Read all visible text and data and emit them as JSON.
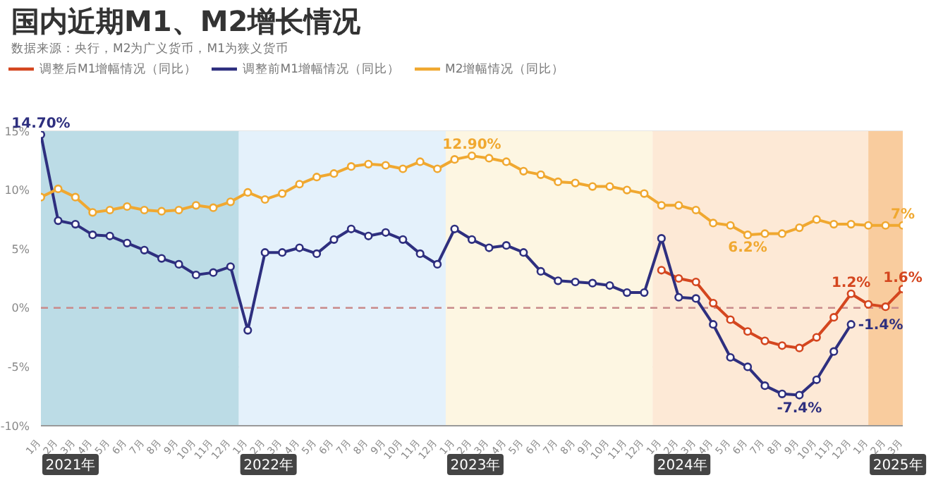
{
  "chart_data": {
    "type": "line",
    "title": "国内近期M1、M2增长情况",
    "subtitle": "数据来源：央行，M2为广义货币，M1为狭义货币",
    "x": [
      "2021-01",
      "2021-02",
      "2021-03",
      "2021-04",
      "2021-05",
      "2021-06",
      "2021-07",
      "2021-08",
      "2021-09",
      "2021-10",
      "2021-11",
      "2021-12",
      "2022-01",
      "2022-02",
      "2022-03",
      "2022-04",
      "2022-05",
      "2022-06",
      "2022-07",
      "2022-08",
      "2022-09",
      "2022-10",
      "2022-11",
      "2022-12",
      "2023-01",
      "2023-02",
      "2023-03",
      "2023-04",
      "2023-05",
      "2023-06",
      "2023-07",
      "2023-08",
      "2023-09",
      "2023-10",
      "2023-11",
      "2023-12",
      "2024-01",
      "2024-02",
      "2024-03",
      "2024-04",
      "2024-05",
      "2024-06",
      "2024-07",
      "2024-08",
      "2024-09",
      "2024-10",
      "2024-11",
      "2024-12",
      "2025-01",
      "2025-02",
      "2025-03"
    ],
    "series": [
      {
        "name": "调整后M1增幅情况（同比）",
        "color": "#d4461f",
        "values": [
          null,
          null,
          null,
          null,
          null,
          null,
          null,
          null,
          null,
          null,
          null,
          null,
          null,
          null,
          null,
          null,
          null,
          null,
          null,
          null,
          null,
          null,
          null,
          null,
          null,
          null,
          null,
          null,
          null,
          null,
          null,
          null,
          null,
          null,
          null,
          null,
          3.2,
          2.5,
          2.2,
          0.4,
          -1.0,
          -2.0,
          -2.8,
          -3.2,
          -3.4,
          -2.5,
          -0.8,
          1.2,
          0.3,
          0.1,
          1.6
        ]
      },
      {
        "name": "调整前M1增幅情况（同比）",
        "color": "#2e2f7f",
        "values": [
          14.7,
          7.4,
          7.1,
          6.2,
          6.1,
          5.5,
          4.9,
          4.2,
          3.7,
          2.8,
          3.0,
          3.5,
          -1.9,
          4.7,
          4.7,
          5.1,
          4.6,
          5.8,
          6.7,
          6.1,
          6.4,
          5.8,
          4.6,
          3.7,
          6.7,
          5.8,
          5.1,
          5.3,
          4.7,
          3.1,
          2.3,
          2.2,
          2.1,
          1.9,
          1.3,
          1.3,
          5.9,
          0.9,
          0.8,
          -1.4,
          -4.2,
          -5.0,
          -6.6,
          -7.3,
          -7.4,
          -6.1,
          -3.7,
          -1.4,
          null,
          null,
          null
        ]
      },
      {
        "name": "M2增幅情况（同比）",
        "color": "#f0a830",
        "values": [
          9.4,
          10.1,
          9.4,
          8.1,
          8.3,
          8.6,
          8.3,
          8.2,
          8.3,
          8.7,
          8.5,
          9.0,
          9.8,
          9.2,
          9.7,
          10.5,
          11.1,
          11.4,
          12.0,
          12.2,
          12.1,
          11.8,
          12.4,
          11.8,
          12.6,
          12.9,
          12.7,
          12.4,
          11.6,
          11.3,
          10.7,
          10.6,
          10.3,
          10.3,
          10.0,
          9.7,
          8.7,
          8.7,
          8.3,
          7.2,
          7.0,
          6.2,
          6.3,
          6.3,
          6.8,
          7.5,
          7.1,
          7.1,
          7.0,
          7.0,
          7.0
        ]
      }
    ],
    "xlim": [
      "2021-01",
      "2025-03"
    ],
    "xticks": [
      {
        "value": "2021-01",
        "label": "1月"
      },
      {
        "value": "2021-02",
        "label": "2月"
      },
      {
        "value": "2021-03",
        "label": "3月"
      },
      {
        "value": "2021-04",
        "label": "4月"
      },
      {
        "value": "2021-05",
        "label": "5月"
      },
      {
        "value": "2021-06",
        "label": "6月"
      },
      {
        "value": "2021-07",
        "label": "7月"
      },
      {
        "value": "2021-08",
        "label": "8月"
      },
      {
        "value": "2021-09",
        "label": "9月"
      },
      {
        "value": "2021-10",
        "label": "10月"
      },
      {
        "value": "2021-11",
        "label": "11月"
      },
      {
        "value": "2021-12",
        "label": "12月"
      },
      {
        "value": "2022-01",
        "label": "1月"
      },
      {
        "value": "2022-02",
        "label": "2月"
      },
      {
        "value": "2022-03",
        "label": "3月"
      },
      {
        "value": "2022-04",
        "label": "4月"
      },
      {
        "value": "2022-05",
        "label": "5月"
      },
      {
        "value": "2022-06",
        "label": "6月"
      },
      {
        "value": "2022-07",
        "label": "7月"
      },
      {
        "value": "2022-08",
        "label": "8月"
      },
      {
        "value": "2022-09",
        "label": "9月"
      },
      {
        "value": "2022-10",
        "label": "10月"
      },
      {
        "value": "2022-11",
        "label": "11月"
      },
      {
        "value": "2022-12",
        "label": "12月"
      },
      {
        "value": "2023-01",
        "label": "1月"
      },
      {
        "value": "2023-02",
        "label": "2月"
      },
      {
        "value": "2023-03",
        "label": "3月"
      },
      {
        "value": "2023-04",
        "label": "4月"
      },
      {
        "value": "2023-05",
        "label": "5月"
      },
      {
        "value": "2023-06",
        "label": "6月"
      },
      {
        "value": "2023-07",
        "label": "7月"
      },
      {
        "value": "2023-08",
        "label": "8月"
      },
      {
        "value": "2023-09",
        "label": "9月"
      },
      {
        "value": "2023-10",
        "label": "10月"
      },
      {
        "value": "2023-11",
        "label": "11月"
      },
      {
        "value": "2023-12",
        "label": "12月"
      },
      {
        "value": "2024-01",
        "label": "1月"
      },
      {
        "value": "2024-02",
        "label": "2月"
      },
      {
        "value": "2024-03",
        "label": "3月"
      },
      {
        "value": "2024-04",
        "label": "4月"
      },
      {
        "value": "2024-05",
        "label": "5月"
      },
      {
        "value": "2024-06",
        "label": "6月"
      },
      {
        "value": "2024-07",
        "label": "7月"
      },
      {
        "value": "2024-08",
        "label": "8月"
      },
      {
        "value": "2024-09",
        "label": "9月"
      },
      {
        "value": "2024-10",
        "label": "10月"
      },
      {
        "value": "2024-11",
        "label": "11月"
      },
      {
        "value": "2024-12",
        "label": "12月"
      },
      {
        "value": "2025-01",
        "label": "1月"
      },
      {
        "value": "2025-02",
        "label": "2月"
      },
      {
        "value": "2025-03",
        "label": "3月"
      }
    ],
    "ylim": [
      -10,
      15
    ],
    "yticks": [
      {
        "value": -10,
        "label": "-10%"
      },
      {
        "value": -5,
        "label": "-5%"
      },
      {
        "value": 0,
        "label": "0%"
      },
      {
        "value": 5,
        "label": "5%"
      },
      {
        "value": 10,
        "label": "10%"
      },
      {
        "value": 15,
        "label": "15%"
      }
    ],
    "grid": "y",
    "legend": "top left",
    "marker": "circle",
    "line_style": "solid",
    "ref_lines": [
      {
        "axis": "y",
        "value": 0,
        "color": "#c98a8a",
        "line_style": "dashed"
      }
    ],
    "bands": [
      {
        "axis": "x",
        "from": "2021-01",
        "to": "2021-12-16",
        "label": "2021年",
        "color": "#bcdce6"
      },
      {
        "axis": "x",
        "from": "2021-12-16",
        "to": "2022-12-16",
        "label": "2022年",
        "color": "#e4f1fb"
      },
      {
        "axis": "x",
        "from": "2022-12-16",
        "to": "2023-12-16",
        "label": "2023年",
        "color": "#fdf6e2"
      },
      {
        "axis": "x",
        "from": "2023-12-16",
        "to": "2025-01",
        "label": "2024年",
        "color": "#fde9d6"
      },
      {
        "axis": "x",
        "from": "2025-01",
        "to": "2025-03",
        "label": "2025年",
        "color": "#f9cc9e"
      }
    ],
    "annotations": [
      {
        "text": "14.70%",
        "x": "2021-01",
        "y": 14.7
      },
      {
        "text": "12.90%",
        "x": "2023-02",
        "y": 12.9
      },
      {
        "text": "6.2%",
        "x": "2024-06",
        "y": 6.2
      },
      {
        "text": "7%",
        "x": "2025-03",
        "y": 7
      },
      {
        "text": "1.2%",
        "x": "2024-12",
        "y": 1.2
      },
      {
        "text": "1.6%",
        "x": "2025-03",
        "y": 1.6
      },
      {
        "text": "-1.4%",
        "x": "2024-12",
        "y": -1.4
      },
      {
        "text": "-7.4%",
        "x": "2024-09",
        "y": -7.4
      }
    ]
  }
}
